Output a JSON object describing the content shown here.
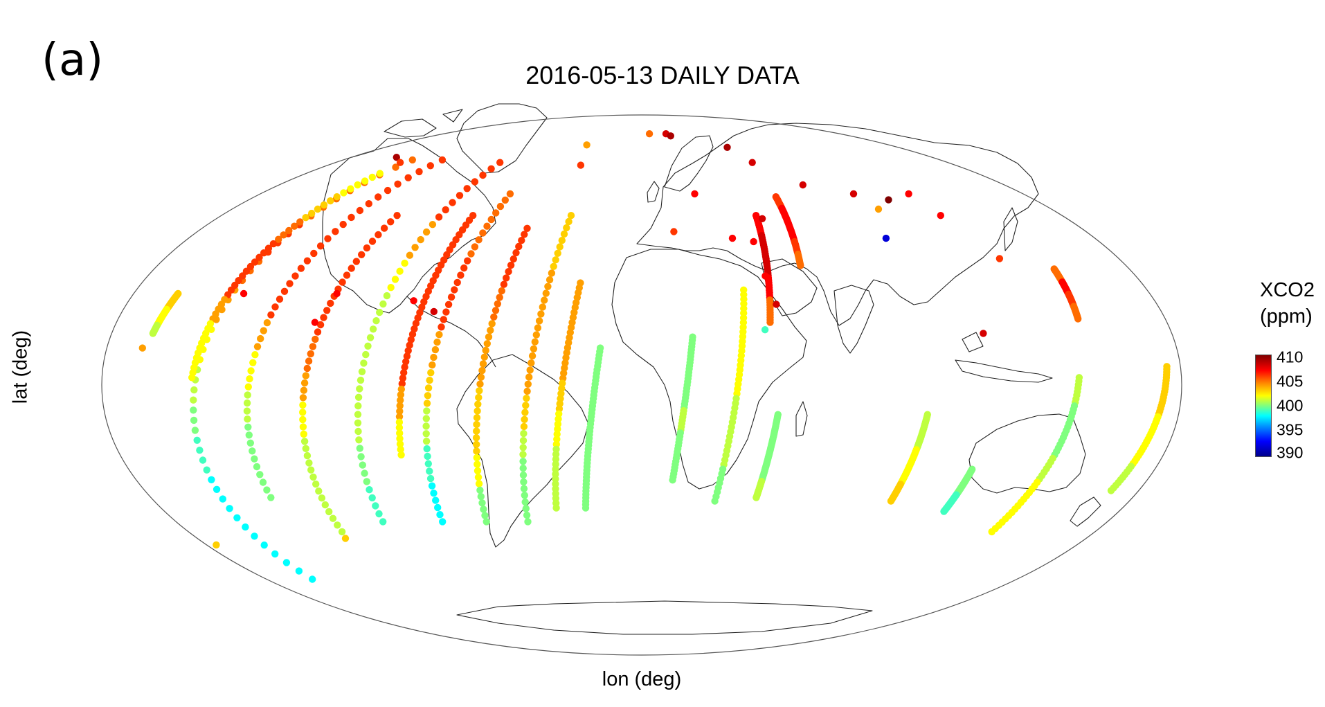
{
  "panel_label": "(a)",
  "title": "2016-05-13 DAILY DATA",
  "axes": {
    "xlabel": "lon (deg)",
    "ylabel": "lat (deg)"
  },
  "projection": "mollweide",
  "legend": {
    "title_line1": "XCO2",
    "title_line2": "(ppm)",
    "ticks": [
      "410",
      "405",
      "400",
      "395",
      "390"
    ],
    "range": [
      390,
      410
    ],
    "placement": "right"
  },
  "colors": {
    "high": "#8b0000",
    "mid_high": "#ff4500",
    "mid": "#ffd700",
    "mid_low": "#7cfc00",
    "low": "#00008b"
  },
  "chart_data": {
    "type": "scatter",
    "title": "2016-05-13 DAILY DATA",
    "xlabel": "lon (deg)",
    "ylabel": "lat (deg)",
    "xlim": [
      -180,
      180
    ],
    "ylim": [
      -90,
      90
    ],
    "colorbar": {
      "label": "XCO2 (ppm)",
      "min": 390,
      "max": 410
    },
    "tracks": [
      {
        "lon_end": -166,
        "lat_start": 25,
        "lat_end": 14,
        "values": [
          403,
          403,
          402,
          402,
          401
        ]
      },
      {
        "lon_end": -158,
        "lat_start": 67,
        "lat_end": -56,
        "values": [
          405,
          405,
          406,
          405,
          404,
          402,
          401,
          400,
          399,
          398,
          398,
          398
        ]
      },
      {
        "lon_end": -150,
        "lat_start": 62,
        "lat_end": 2,
        "values": [
          402,
          403,
          405,
          406,
          406,
          404,
          402,
          402
        ]
      },
      {
        "lon_end": -136,
        "lat_start": 67,
        "lat_end": -31,
        "values": [
          406,
          406,
          406,
          406,
          406,
          404,
          402,
          401,
          400,
          400
        ]
      },
      {
        "lon_end": -119,
        "lat_start": 48,
        "lat_end": -41,
        "values": [
          406,
          406,
          406,
          406,
          405,
          404,
          402,
          401,
          401,
          401
        ]
      },
      {
        "lon_end": -100,
        "lat_start": 66,
        "lat_end": -38,
        "values": [
          406,
          406,
          404,
          402,
          401,
          401,
          401,
          401,
          400,
          399
        ]
      },
      {
        "lon_end": -83,
        "lat_start": 48,
        "lat_end": -19,
        "values": [
          406,
          406,
          406,
          406,
          406,
          404,
          402
        ]
      },
      {
        "lon_end": -77,
        "lat_start": 55,
        "lat_end": -38,
        "values": [
          405,
          405,
          406,
          406,
          404,
          403,
          401,
          399,
          398
        ]
      },
      {
        "lon_end": -60,
        "lat_start": 44,
        "lat_end": -38,
        "values": [
          406,
          406,
          405,
          404,
          404,
          403,
          403,
          402,
          400
        ]
      },
      {
        "lon_end": -44,
        "lat_start": 48,
        "lat_end": -38,
        "values": [
          403,
          403,
          404,
          404,
          404,
          404,
          403,
          401,
          400,
          400
        ]
      },
      {
        "lon_end": -32,
        "lat_start": 28,
        "lat_end": -34,
        "values": [
          404,
          404,
          404,
          403,
          402,
          401,
          401
        ]
      },
      {
        "lon_end": -21,
        "lat_start": 10,
        "lat_end": -34,
        "values": [
          400,
          400,
          400,
          400,
          400
        ]
      },
      {
        "lon_end": 11,
        "lat_start": 13,
        "lat_end": -26,
        "values": [
          400,
          400,
          400,
          401,
          400,
          400
        ]
      },
      {
        "lon_end": 27,
        "lat_start": 26,
        "lat_end": -32,
        "values": [
          402,
          402,
          402,
          401,
          401,
          400
        ]
      },
      {
        "lon_end": 42,
        "lat_start": -8,
        "lat_end": -31,
        "values": [
          400,
          400,
          400,
          400,
          401
        ]
      },
      {
        "lon_end": 44,
        "lat_start": 48,
        "lat_end": 17,
        "values": [
          407,
          408,
          408,
          407,
          405
        ]
      },
      {
        "lon_end": 59,
        "lat_start": 54,
        "lat_end": 33,
        "values": [
          406,
          407,
          407,
          407,
          406,
          405
        ]
      },
      {
        "lon_end": 92,
        "lat_start": -8,
        "lat_end": -32,
        "values": [
          401,
          401,
          402,
          402,
          403
        ]
      },
      {
        "lon_end": 114,
        "lat_start": -23,
        "lat_end": -35,
        "values": [
          400,
          400,
          400,
          399,
          399
        ]
      },
      {
        "lon_end": 139,
        "lat_start": 2,
        "lat_end": -41,
        "values": [
          401,
          400,
          400,
          401,
          402,
          402
        ]
      },
      {
        "lon_end": 150,
        "lat_start": 32,
        "lat_end": 18,
        "values": [
          405,
          407,
          406,
          405
        ]
      },
      {
        "lon_end": 170,
        "lat_start": 5,
        "lat_end": -29,
        "values": [
          403,
          403,
          402,
          402,
          401
        ]
      }
    ],
    "points": [
      {
        "lon": -152,
        "lat": 68,
        "value": 409
      },
      {
        "lon": -142,
        "lat": 66,
        "value": 406
      },
      {
        "lon": -40,
        "lat": 73,
        "value": 404
      },
      {
        "lon": -35,
        "lat": 65,
        "value": 406
      },
      {
        "lon": 7,
        "lat": 78,
        "value": 405
      },
      {
        "lon": 22,
        "lat": 78,
        "value": 408
      },
      {
        "lon": 25,
        "lat": 77,
        "value": 409
      },
      {
        "lon": 60,
        "lat": 72,
        "value": 409
      },
      {
        "lon": 65,
        "lat": 66,
        "value": 408
      },
      {
        "lon": 80,
        "lat": 58,
        "value": 408
      },
      {
        "lon": 100,
        "lat": 55,
        "value": 408
      },
      {
        "lon": 113,
        "lat": 53,
        "value": 410
      },
      {
        "lon": 104,
        "lat": 50,
        "value": 404
      },
      {
        "lon": 126,
        "lat": 55,
        "value": 407
      },
      {
        "lon": 128,
        "lat": 48,
        "value": 407
      },
      {
        "lon": 135,
        "lat": 35,
        "value": 406
      },
      {
        "lon": 97,
        "lat": 41,
        "value": 392
      },
      {
        "lon": 44,
        "lat": 40,
        "value": 407
      },
      {
        "lon": 45,
        "lat": 30,
        "value": 407
      },
      {
        "lon": 47,
        "lat": 22,
        "value": 408
      },
      {
        "lon": 42,
        "lat": 15,
        "value": 399
      },
      {
        "lon": 36,
        "lat": 41,
        "value": 407
      },
      {
        "lon": 13,
        "lat": 43,
        "value": 406
      },
      {
        "lon": 25,
        "lat": 55,
        "value": 407
      },
      {
        "lon": 51,
        "lat": 47,
        "value": 408
      },
      {
        "lon": 116,
        "lat": 14,
        "value": 408
      },
      {
        "lon": -72,
        "lat": 20,
        "value": 408
      },
      {
        "lon": -80,
        "lat": 23,
        "value": 407
      },
      {
        "lon": -108,
        "lat": 25,
        "value": 407
      },
      {
        "lon": -112,
        "lat": 17,
        "value": 407
      },
      {
        "lon": -141,
        "lat": 25,
        "value": 407
      },
      {
        "lon": -168,
        "lat": 10,
        "value": 404
      },
      {
        "lon": -176,
        "lat": -45,
        "value": 403
      },
      {
        "lon": -120,
        "lat": -43,
        "value": 403
      }
    ]
  }
}
